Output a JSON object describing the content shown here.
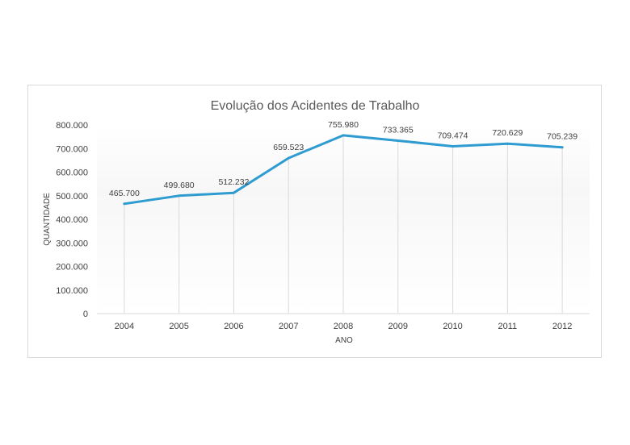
{
  "chart_data": {
    "type": "line",
    "title": "Evolução dos Acidentes de Trabalho",
    "xlabel": "ANO",
    "ylabel": "QUANTIDADE",
    "categories": [
      "2004",
      "2005",
      "2006",
      "2007",
      "2008",
      "2009",
      "2010",
      "2011",
      "2012"
    ],
    "series": [
      {
        "values": [
          465700,
          499680,
          512232,
          659523,
          755980,
          733365,
          709474,
          720629,
          705239
        ],
        "labels": [
          "465.700",
          "499.680",
          "512.232",
          "659.523",
          "755.980",
          "733.365",
          "709.474",
          "720.629",
          "705.239"
        ],
        "color": "#2e9bd1"
      }
    ],
    "ylim": [
      0,
      800000
    ],
    "yticks": [
      0,
      100000,
      200000,
      300000,
      400000,
      500000,
      600000,
      700000,
      800000
    ],
    "ytick_labels": [
      "0",
      "100.000",
      "200.000",
      "300.000",
      "400.000",
      "500.000",
      "600.000",
      "700.000",
      "800.000"
    ],
    "grid": "drop-lines",
    "legend": "none"
  }
}
